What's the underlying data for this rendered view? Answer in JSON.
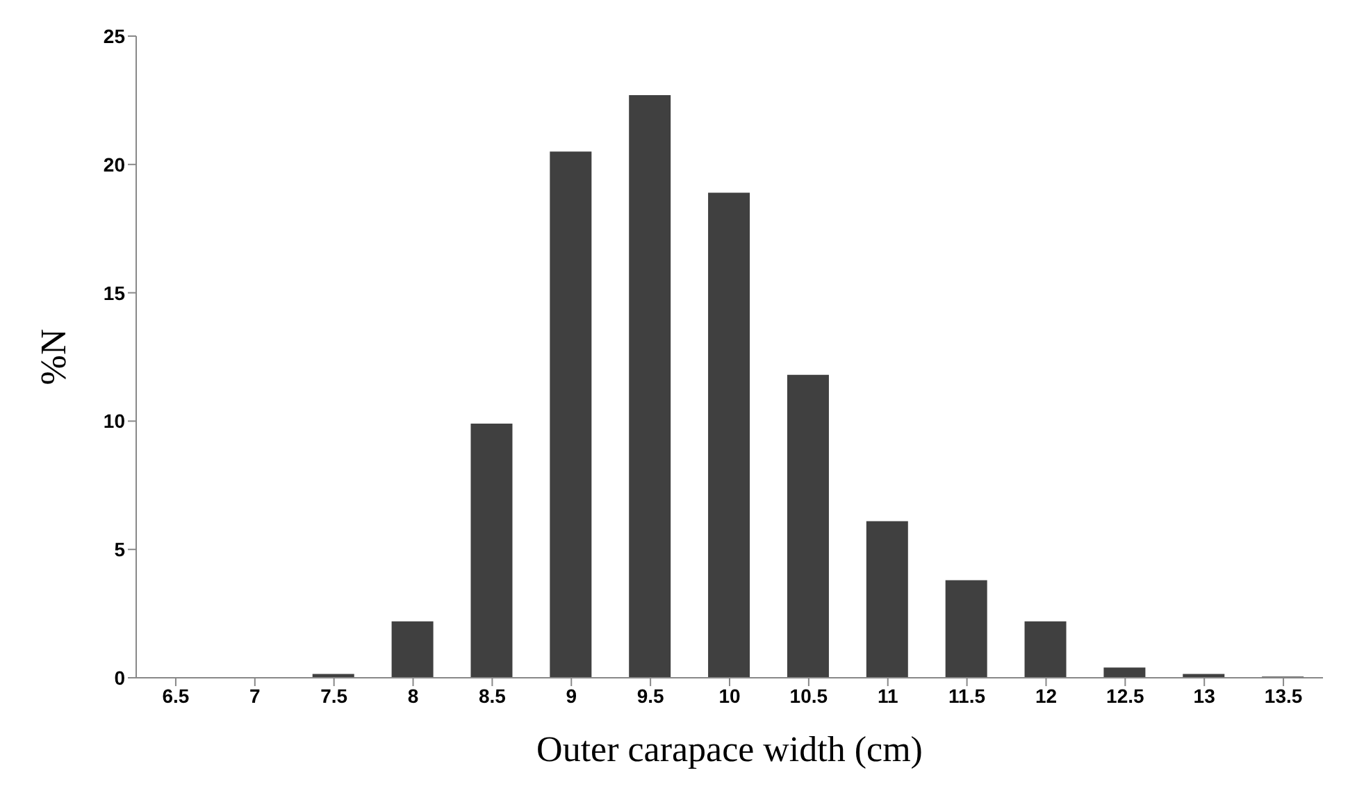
{
  "chart_data": {
    "type": "bar",
    "xlabel": "Outer carapace width (cm)",
    "ylabel": "%N",
    "categories": [
      "6.5",
      "7",
      "7.5",
      "8",
      "8.5",
      "9",
      "9.5",
      "10",
      "10.5",
      "11",
      "11.5",
      "12",
      "12.5",
      "13",
      "13.5"
    ],
    "values": [
      0,
      0,
      0.15,
      2.2,
      9.9,
      20.5,
      22.7,
      18.9,
      11.8,
      6.1,
      3.8,
      2.2,
      0.4,
      0.15,
      0.05
    ],
    "color": "#404040",
    "ylim": [
      0,
      25
    ],
    "yticks": [
      0,
      5,
      10,
      15,
      20,
      25
    ],
    "grid": false,
    "legend": false
  }
}
